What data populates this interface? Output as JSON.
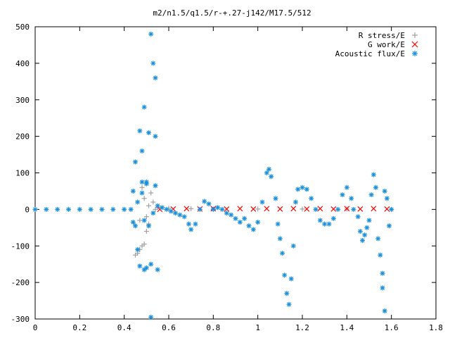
{
  "chart_data": {
    "type": "scatter",
    "title": "m2/n1.5/q1.5/r-+.27-j142/M17.5/512",
    "xlabel": "",
    "ylabel": "",
    "xlim": [
      0,
      1.8
    ],
    "ylim": [
      -300,
      500
    ],
    "x_ticks": [
      "0",
      "0.2",
      "0.4",
      "0.6",
      "0.8",
      "1",
      "1.2",
      "1.4",
      "1.6",
      "1.8"
    ],
    "y_ticks": [
      "500",
      "400",
      "300",
      "200",
      "100",
      "0",
      "-100",
      "-200",
      "-300"
    ],
    "legend_position": "top-right",
    "grid": false,
    "series": [
      {
        "name": "R stress/E",
        "marker": "plus",
        "color": "#a0a0a0",
        "points": [
          [
            0.45,
            -125
          ],
          [
            0.46,
            -120
          ],
          [
            0.47,
            -110
          ],
          [
            0.48,
            -100
          ],
          [
            0.49,
            -95
          ],
          [
            0.5,
            -60
          ],
          [
            0.51,
            -40
          ],
          [
            0.52,
            45
          ],
          [
            0.53,
            20
          ],
          [
            0.54,
            0
          ],
          [
            0.47,
            -30
          ],
          [
            0.49,
            30
          ],
          [
            0.51,
            10
          ],
          [
            0.48,
            60
          ],
          [
            0.5,
            -20
          ],
          [
            0.55,
            5
          ],
          [
            0.6,
            3
          ],
          [
            0.7,
            2
          ],
          [
            0.8,
            1
          ],
          [
            1.0,
            1
          ],
          [
            1.2,
            1
          ],
          [
            1.4,
            1
          ],
          [
            1.6,
            0
          ]
        ]
      },
      {
        "name": "G work/E",
        "marker": "cross",
        "color": "#ff0000",
        "points": [
          [
            0.56,
            0
          ],
          [
            0.62,
            1
          ],
          [
            0.68,
            2
          ],
          [
            0.74,
            1
          ],
          [
            0.8,
            2
          ],
          [
            0.86,
            1
          ],
          [
            0.92,
            2
          ],
          [
            0.98,
            1
          ],
          [
            1.04,
            2
          ],
          [
            1.1,
            1
          ],
          [
            1.16,
            2
          ],
          [
            1.22,
            1
          ],
          [
            1.28,
            2
          ],
          [
            1.34,
            1
          ],
          [
            1.4,
            2
          ],
          [
            1.46,
            1
          ],
          [
            1.52,
            2
          ],
          [
            1.58,
            1
          ]
        ]
      },
      {
        "name": "Acoustic flux/E",
        "marker": "star",
        "color": "#1a8fdc",
        "points": [
          [
            0.44,
            50
          ],
          [
            0.44,
            -35
          ],
          [
            0.45,
            130
          ],
          [
            0.45,
            -45
          ],
          [
            0.46,
            20
          ],
          [
            0.46,
            -110
          ],
          [
            0.47,
            215
          ],
          [
            0.47,
            -155
          ],
          [
            0.48,
            160
          ],
          [
            0.48,
            75
          ],
          [
            0.48,
            45
          ],
          [
            0.49,
            280
          ],
          [
            0.49,
            -165
          ],
          [
            0.49,
            -30
          ],
          [
            0.5,
            75
          ],
          [
            0.5,
            -160
          ],
          [
            0.5,
            70
          ],
          [
            0.51,
            210
          ],
          [
            0.51,
            -45
          ],
          [
            0.52,
            480
          ],
          [
            0.52,
            -295
          ],
          [
            0.52,
            -150
          ],
          [
            0.53,
            400
          ],
          [
            0.53,
            -10
          ],
          [
            0.54,
            360
          ],
          [
            0.54,
            200
          ],
          [
            0.54,
            65
          ],
          [
            0.55,
            -165
          ],
          [
            0.55,
            10
          ],
          [
            0.57,
            5
          ],
          [
            0.59,
            0
          ],
          [
            0.61,
            -5
          ],
          [
            0.63,
            -10
          ],
          [
            0.65,
            -15
          ],
          [
            0.67,
            -20
          ],
          [
            0.69,
            -40
          ],
          [
            0.7,
            -55
          ],
          [
            0.72,
            -40
          ],
          [
            0.74,
            0
          ],
          [
            0.76,
            22
          ],
          [
            0.78,
            15
          ],
          [
            0.8,
            0
          ],
          [
            0.82,
            5
          ],
          [
            0.84,
            0
          ],
          [
            0.86,
            -10
          ],
          [
            0.88,
            -15
          ],
          [
            0.9,
            -25
          ],
          [
            0.92,
            -35
          ],
          [
            0.94,
            -25
          ],
          [
            0.96,
            -45
          ],
          [
            0.98,
            -55
          ],
          [
            1.0,
            -35
          ],
          [
            1.02,
            20
          ],
          [
            1.04,
            100
          ],
          [
            1.05,
            110
          ],
          [
            1.06,
            90
          ],
          [
            1.08,
            30
          ],
          [
            1.09,
            -40
          ],
          [
            1.1,
            -80
          ],
          [
            1.11,
            -120
          ],
          [
            1.12,
            -180
          ],
          [
            1.13,
            -230
          ],
          [
            1.14,
            -260
          ],
          [
            1.15,
            -190
          ],
          [
            1.16,
            -100
          ],
          [
            1.17,
            20
          ],
          [
            1.18,
            55
          ],
          [
            1.2,
            60
          ],
          [
            1.22,
            55
          ],
          [
            1.24,
            30
          ],
          [
            1.26,
            0
          ],
          [
            1.28,
            -30
          ],
          [
            1.3,
            -40
          ],
          [
            1.32,
            -40
          ],
          [
            1.34,
            -25
          ],
          [
            1.36,
            0
          ],
          [
            1.38,
            40
          ],
          [
            1.4,
            60
          ],
          [
            1.42,
            30
          ],
          [
            1.43,
            0
          ],
          [
            1.45,
            -20
          ],
          [
            1.46,
            -60
          ],
          [
            1.47,
            -85
          ],
          [
            1.48,
            -70
          ],
          [
            1.49,
            -50
          ],
          [
            1.5,
            -30
          ],
          [
            1.51,
            40
          ],
          [
            1.52,
            95
          ],
          [
            1.53,
            60
          ],
          [
            1.54,
            -80
          ],
          [
            1.55,
            -125
          ],
          [
            1.56,
            -175
          ],
          [
            1.56,
            -215
          ],
          [
            1.57,
            -278
          ],
          [
            1.57,
            50
          ],
          [
            1.58,
            30
          ],
          [
            1.59,
            -45
          ],
          [
            1.6,
            0
          ],
          [
            0.0,
            0
          ],
          [
            0.05,
            0
          ],
          [
            0.1,
            0
          ],
          [
            0.15,
            0
          ],
          [
            0.2,
            0
          ],
          [
            0.25,
            0
          ],
          [
            0.3,
            0
          ],
          [
            0.35,
            0
          ],
          [
            0.4,
            0
          ],
          [
            0.43,
            0
          ]
        ]
      }
    ]
  }
}
